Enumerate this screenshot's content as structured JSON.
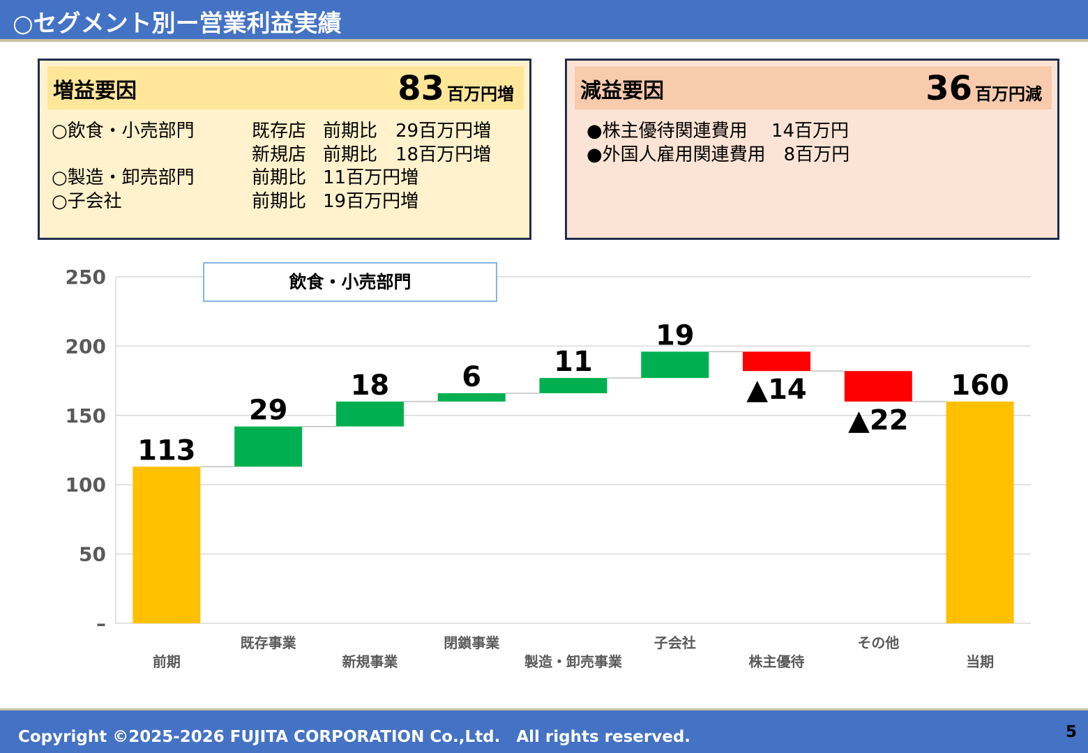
{
  "header": {
    "title": "○セグメント別ー営業利益実績"
  },
  "increase_panel": {
    "title": "増益要因",
    "amount": "83",
    "unit": "百万円増",
    "lines": [
      {
        "left": "○飲食・小売部門",
        "mid": "既存店",
        "right": "前期比　29百万円増"
      },
      {
        "left": "",
        "mid": "新規店",
        "right": "前期比　18百万円増"
      },
      {
        "left": "○製造・卸売部門",
        "mid": "前期比",
        "right": "11百万円増"
      },
      {
        "left": "○子会社",
        "mid": "前期比",
        "right": "19百万円増"
      }
    ]
  },
  "decrease_panel": {
    "title": "減益要因",
    "amount": "36",
    "unit": "百万円減",
    "lines": [
      {
        "text": "●株主優待関連費用　 14百万円"
      },
      {
        "text": "●外国人雇用関連費用　8百万円"
      }
    ]
  },
  "colors": {
    "total": "#ffc000",
    "increase": "#00b050",
    "decrease": "#ff0000",
    "header": "#4472c4"
  },
  "chart_data": {
    "type": "waterfall",
    "annotation": "飲食・小売部門",
    "ylim": [
      0,
      250
    ],
    "yticks": [
      "–",
      "50",
      "100",
      "150",
      "200",
      "250"
    ],
    "categories": [
      "前期",
      "既存事業",
      "新規事業",
      "閉鎖事業",
      "製造・卸売事業",
      "子会社",
      "株主優待",
      "その他",
      "当期"
    ],
    "bars": [
      {
        "kind": "total",
        "start": 0,
        "end": 113,
        "label": "113"
      },
      {
        "kind": "increase",
        "start": 113,
        "end": 142,
        "label": "29"
      },
      {
        "kind": "increase",
        "start": 142,
        "end": 160,
        "label": "18"
      },
      {
        "kind": "increase",
        "start": 160,
        "end": 166,
        "label": "6"
      },
      {
        "kind": "increase",
        "start": 166,
        "end": 177,
        "label": "11"
      },
      {
        "kind": "increase",
        "start": 177,
        "end": 196,
        "label": "19"
      },
      {
        "kind": "decrease",
        "start": 196,
        "end": 182,
        "label": "▲14"
      },
      {
        "kind": "decrease",
        "start": 182,
        "end": 160,
        "label": "▲22"
      },
      {
        "kind": "total",
        "start": 0,
        "end": 160,
        "label": "160"
      }
    ]
  },
  "footer": {
    "copyright": "Copyright ©2025-2026 FUJITA CORPORATION Co.,Ltd.　All rights reserved.",
    "page_number": "5"
  }
}
